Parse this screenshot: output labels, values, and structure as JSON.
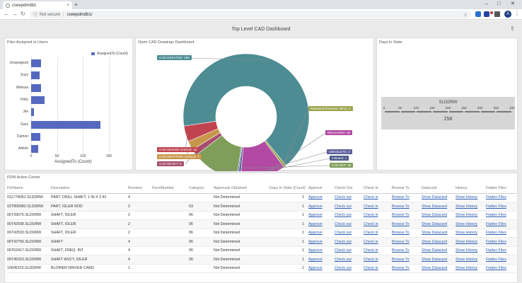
{
  "browser": {
    "tab_title": "cseepdmdb1",
    "tab_close": "×",
    "new_tab": "+",
    "minimize": "–",
    "maximize": "□",
    "close": "✕",
    "back": "←",
    "forward": "→",
    "reload": "↻",
    "security_label": "Not secure",
    "url": "cseepdmdb1/",
    "avatar_initial": "A"
  },
  "page": {
    "title": "Top Level CAD Dashboard",
    "share_icon": "⇪"
  },
  "files_panel": {
    "title": "Files Assigned to Users",
    "legend": "AssignedTo (Count)",
    "x_axis_title": "AssignedTo (Count)"
  },
  "cad_panel": {
    "title": "Open CAD Drawings Dashboard"
  },
  "days_panel": {
    "title": "Days in State",
    "gauge_name": "SLDDRW",
    "gauge_ticks": [
      "0",
      "50",
      "100",
      "150",
      "200",
      "250",
      "300",
      "350",
      "400"
    ],
    "gauge_value": "258",
    "gauge_min": 0,
    "gauge_max": 400
  },
  "table_panel": {
    "title": "PDM Action Center",
    "columns": [
      "FileName",
      "Description",
      "Revision",
      "FormNumber",
      "Category",
      "Approvals Obtained",
      "Days In State (Count)",
      "Approve",
      "Check Out",
      "Check In",
      "Browse To",
      "Datacard",
      "History",
      "Flatten Files"
    ],
    "rows": [
      [
        "0117790B1.SLDDRW",
        "PART, DRILL SHAFT, 1 IN X 3 IN",
        "4",
        "",
        "",
        "Not Determined",
        "1",
        "Approve",
        "Check out",
        "Check in",
        "Browse To",
        "Show Datacard",
        "Show History",
        "Flatten Files"
      ],
      [
        "02T800082.SLDDRW",
        "PART, IDLER ROD",
        "2",
        "",
        "03",
        "Not Determined",
        "1",
        "Approve",
        "Check out",
        "Check in",
        "Browse To",
        "Show Datacard",
        "Show History",
        "Flatten Files"
      ],
      [
        "06T39075.SLDDRW",
        "SHAFT, IDLER",
        "2",
        "",
        "06",
        "Not Determined",
        "1",
        "Approve",
        "Check out",
        "Check in",
        "Browse To",
        "Show Datacard",
        "Show History",
        "Flatten Files"
      ],
      [
        "06T42008.SLDDRW",
        "SHAFT, IDLER",
        "2",
        "",
        "06",
        "Not Determined",
        "1",
        "Approve",
        "Check out",
        "Check in",
        "Browse To",
        "Show Datacard",
        "Show History",
        "Flatten Files"
      ],
      [
        "06T42593.SLDDRW",
        "SHAFT, IDLER",
        "2",
        "",
        "06",
        "Not Determined",
        "1",
        "Approve",
        "Check out",
        "Check in",
        "Browse To",
        "Show Datacard",
        "Show History",
        "Flatten Files"
      ],
      [
        "06T42756.SLDDRW",
        "SHAFT",
        "4",
        "",
        "06",
        "Not Determined",
        "1",
        "Approve",
        "Check out",
        "Check in",
        "Browse To",
        "Show Datacard",
        "Show History",
        "Flatten Files"
      ],
      [
        "06T62417.SLDDRW",
        "SHAFT, FREQ. INT",
        "4",
        "",
        "06",
        "Not Determined",
        "1",
        "Approve",
        "Check out",
        "Check in",
        "Browse To",
        "Show Datacard",
        "Show History",
        "Flatten Files"
      ],
      [
        "06T45323.SLDDRW",
        "SHAFT ASS'Y, IDLER",
        "4",
        "",
        "06",
        "Not Determined",
        "1",
        "Approve",
        "Check out",
        "Check in",
        "Browse To",
        "Show Datacard",
        "Show History",
        "Flatten Files"
      ],
      [
        "10696315.SLDDRW",
        "BLOWER DRIVER CARD",
        "1",
        "",
        "",
        "Not Determined",
        "1",
        "Approve",
        "Check out",
        "Check in",
        "Browse To",
        "Show Datacard",
        "Show History",
        "Flatten Files"
      ]
    ]
  },
  "chart_data": [
    {
      "type": "bar",
      "orientation": "horizontal",
      "categories": [
        "Unassigned",
        "Suzy",
        "Melissa",
        "Holly",
        "Jim",
        "Gary",
        "Damon",
        "Admin"
      ],
      "series": [
        {
          "name": "AssignedTo (Count)",
          "values": [
            19,
            17,
            19,
            26,
            6,
            134,
            18,
            13
          ]
        }
      ],
      "xticks": [
        "0",
        "50",
        "100",
        "150"
      ],
      "xlim": [
        0,
        150
      ],
      "xlabel": "AssignedTo (Count)",
      "legend": "top-right",
      "color": "#5469bf"
    },
    {
      "type": "pie",
      "donut": true,
      "slices": [
        {
          "label": "CAD CREATED: 198",
          "value": 198,
          "color": "#4e8c94"
        },
        {
          "label": "Released (Numeric REV): 2",
          "value": 2,
          "color": "#9aa54a"
        },
        {
          "label": "RELEASED: 35",
          "value": 35,
          "color": "#b24aa3"
        },
        {
          "label": "OBSOLETE: 2",
          "value": 2,
          "color": "#5b5f9a"
        },
        {
          "label": "Initiated: 1",
          "value": 1,
          "color": "#4a5a8c"
        },
        {
          "label": "CAD WIP: 36",
          "value": 36,
          "color": "#7f9e5a"
        },
        {
          "label": "CAD READY: 5",
          "value": 5,
          "color": "#a54e6e"
        },
        {
          "label": "CAD DRAFTING CHECK: 7",
          "value": 7,
          "color": "#c8964a"
        },
        {
          "label": "CAD DESIGN CHECK: 12",
          "value": 12,
          "color": "#c0434f"
        }
      ]
    }
  ]
}
